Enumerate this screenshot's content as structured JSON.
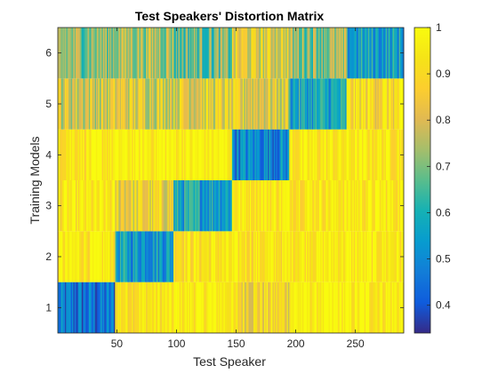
{
  "chart_data": {
    "type": "heatmap",
    "title": "Test Speakers' Distortion Matrix",
    "xlabel": "Test Speaker",
    "ylabel": "Training Models",
    "x_ticks": [
      50,
      100,
      150,
      200,
      250
    ],
    "y_ticks": [
      1,
      2,
      3,
      4,
      5,
      6
    ],
    "xlim": [
      0.5,
      290.5
    ],
    "ylim": [
      0.5,
      6.5
    ],
    "colorbar": {
      "ticks": [
        0.4,
        0.5,
        0.6,
        0.7,
        0.8,
        0.9,
        1
      ],
      "tick_labels": [
        "0.4",
        "0.5",
        "0.6",
        "0.7",
        "0.8",
        "0.9",
        "1"
      ],
      "range": [
        0.34,
        1.0
      ]
    },
    "colormap": "parula",
    "grid": false,
    "n_test_speakers": 290,
    "n_models": 6,
    "segments": [
      {
        "x_range": [
          1,
          48
        ],
        "values_by_model": {
          "1": 0.45,
          "2": 0.95,
          "3": 0.93,
          "4": 0.95,
          "5": 0.8,
          "6": 0.72
        }
      },
      {
        "x_range": [
          49,
          97
        ],
        "values_by_model": {
          "1": 0.93,
          "2": 0.55,
          "3": 0.85,
          "4": 0.97,
          "5": 0.82,
          "6": 0.75
        }
      },
      {
        "x_range": [
          98,
          146
        ],
        "values_by_model": {
          "1": 0.96,
          "2": 0.93,
          "3": 0.57,
          "4": 0.97,
          "5": 0.83,
          "6": 0.68
        }
      },
      {
        "x_range": [
          147,
          194
        ],
        "values_by_model": {
          "1": 0.88,
          "2": 0.93,
          "3": 0.95,
          "4": 0.5,
          "5": 0.82,
          "6": 0.82
        }
      },
      {
        "x_range": [
          195,
          242
        ],
        "values_by_model": {
          "1": 0.97,
          "2": 0.96,
          "3": 0.95,
          "4": 0.94,
          "5": 0.57,
          "6": 0.72
        }
      },
      {
        "x_range": [
          243,
          290
        ],
        "values_by_model": {
          "1": 0.96,
          "2": 0.95,
          "3": 0.95,
          "4": 0.95,
          "5": 0.9,
          "6": 0.55
        }
      }
    ]
  }
}
